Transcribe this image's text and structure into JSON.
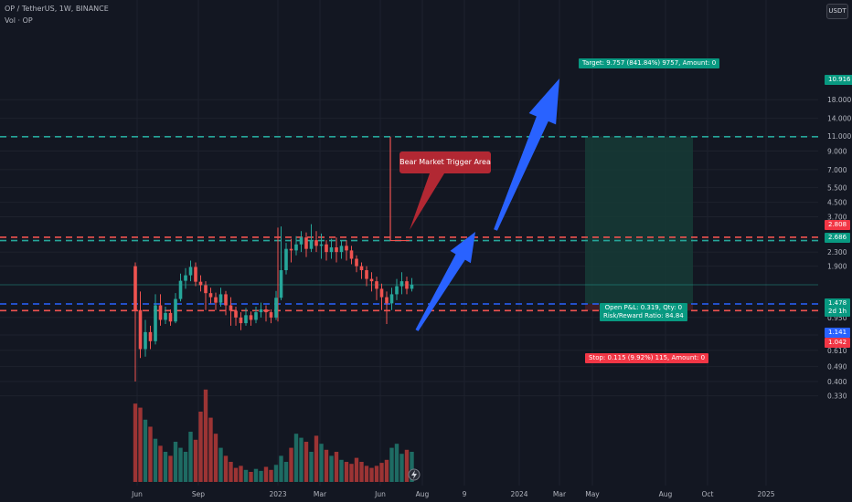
{
  "header": {
    "symbol": "OP / TetherUS, 1W, BINANCE",
    "volume_label": "Vol · OP",
    "currency_button": "USDT"
  },
  "colors": {
    "background": "#131722",
    "grid": "#1e222d",
    "up": "#26a69a",
    "down": "#ef5350",
    "vol_up": "#1e6b63",
    "vol_down": "#9c3434",
    "arrow": "#2962ff",
    "target_zone": "#163b36",
    "target_label": "#089981",
    "stop_label": "#f23645"
  },
  "annotations": {
    "callout": "Bear Market Trigger Area",
    "target": "Target: 9.757 (841.84%) 9757, Amount: 0",
    "stop": "Stop: 0.115 (9.92%) 115, Amount: 0",
    "open_pnl": "Open P&L: 0.319, Qty: 0",
    "risk_reward": "Risk/Reward Ratio: 84.84"
  },
  "price_labels": {
    "top_level": "10.916",
    "red_level": "2.808",
    "green_level": "2.686",
    "last_price": "1.478",
    "countdown": "2d 1h",
    "entry": "1.141",
    "stop_level": "1.042"
  },
  "chart_data": {
    "type": "candlestick",
    "scale": "log",
    "title": "OP / TetherUS, 1W, BINANCE",
    "ylim": [
      0.3,
      20
    ],
    "y_ticks": [
      "18.000",
      "14.000",
      "11.000",
      "9.000",
      "7.000",
      "5.500",
      "4.500",
      "3.700",
      "2.300",
      "1.900",
      "0.950",
      "0.750",
      "0.610",
      "0.490",
      "0.400",
      "0.330"
    ],
    "x_ticks": [
      "Jun",
      "Sep",
      "2023",
      "Mar",
      "Jun",
      "Aug",
      "9",
      "2024",
      "Mar",
      "May",
      "Aug",
      "Oct",
      "2025"
    ],
    "horizontal_levels": [
      {
        "value": 10.916,
        "style": "dashed",
        "color": "#26a69a"
      },
      {
        "value": 2.808,
        "style": "dashed",
        "color": "#ef5350"
      },
      {
        "value": 2.686,
        "style": "dashed",
        "color": "#26a69a"
      },
      {
        "value": 1.141,
        "style": "dashed",
        "color": "#2962ff"
      },
      {
        "value": 1.042,
        "style": "dashed",
        "color": "#ef5350"
      }
    ],
    "candles": [
      [
        1.9,
        1.05,
        2.0,
        0.4
      ],
      [
        1.05,
        0.62,
        1.35,
        0.55
      ],
      [
        0.62,
        0.78,
        0.92,
        0.56
      ],
      [
        0.78,
        0.69,
        0.85,
        0.62
      ],
      [
        0.69,
        1.12,
        1.3,
        0.66
      ],
      [
        1.12,
        0.92,
        1.3,
        0.85
      ],
      [
        0.92,
        1.01,
        1.1,
        0.87
      ],
      [
        1.01,
        0.9,
        1.06,
        0.85
      ],
      [
        0.9,
        1.22,
        1.32,
        0.88
      ],
      [
        1.22,
        1.56,
        1.72,
        1.18
      ],
      [
        1.56,
        1.68,
        1.85,
        1.4
      ],
      [
        1.68,
        1.88,
        2.05,
        1.55
      ],
      [
        1.88,
        1.54,
        2.0,
        1.45
      ],
      [
        1.54,
        1.47,
        1.68,
        1.35
      ],
      [
        1.47,
        1.32,
        1.55,
        1.05
      ],
      [
        1.32,
        1.25,
        1.42,
        1.15
      ],
      [
        1.25,
        1.16,
        1.33,
        1.05
      ],
      [
        1.16,
        1.3,
        1.42,
        1.1
      ],
      [
        1.3,
        1.12,
        1.36,
        0.98
      ],
      [
        1.12,
        1.04,
        1.25,
        0.85
      ],
      [
        1.04,
        0.95,
        1.1,
        0.85
      ],
      [
        0.95,
        0.88,
        1.02,
        0.8
      ],
      [
        0.88,
        0.98,
        1.08,
        0.85
      ],
      [
        0.98,
        0.92,
        1.03,
        0.85
      ],
      [
        0.92,
        1.02,
        1.1,
        0.88
      ],
      [
        1.02,
        1.06,
        1.16,
        0.95
      ],
      [
        1.06,
        1.02,
        1.12,
        0.9
      ],
      [
        1.02,
        0.95,
        1.06,
        0.88
      ],
      [
        0.95,
        1.24,
        1.36,
        0.92
      ],
      [
        1.24,
        1.8,
        3.25,
        1.2
      ],
      [
        1.8,
        2.4,
        2.6,
        1.7
      ],
      [
        2.4,
        2.35,
        2.75,
        2.0
      ],
      [
        2.35,
        2.55,
        2.85,
        2.2
      ],
      [
        2.55,
        2.8,
        3.05,
        2.3
      ],
      [
        2.8,
        2.4,
        3.0,
        2.15
      ],
      [
        2.4,
        2.7,
        3.35,
        2.3
      ],
      [
        2.7,
        2.5,
        3.05,
        2.3
      ],
      [
        2.5,
        2.55,
        2.95,
        2.1
      ],
      [
        2.55,
        2.3,
        2.7,
        2.05
      ],
      [
        2.3,
        2.45,
        2.75,
        2.1
      ],
      [
        2.45,
        2.3,
        2.8,
        2.0
      ],
      [
        2.3,
        2.5,
        2.7,
        2.1
      ],
      [
        2.5,
        2.35,
        2.7,
        2.05
      ],
      [
        2.35,
        2.1,
        2.5,
        1.95
      ],
      [
        2.1,
        1.9,
        2.2,
        1.75
      ],
      [
        1.9,
        1.8,
        2.0,
        1.6
      ],
      [
        1.8,
        1.6,
        1.9,
        1.45
      ],
      [
        1.6,
        1.55,
        1.75,
        1.35
      ],
      [
        1.55,
        1.4,
        1.65,
        1.2
      ],
      [
        1.4,
        1.25,
        1.5,
        1.05
      ],
      [
        1.25,
        1.15,
        1.35,
        0.87
      ],
      [
        1.15,
        1.3,
        1.42,
        1.05
      ],
      [
        1.3,
        1.45,
        1.6,
        1.2
      ],
      [
        1.45,
        1.55,
        1.75,
        1.3
      ],
      [
        1.55,
        1.4,
        1.65,
        1.3
      ],
      [
        1.4,
        1.48,
        1.62,
        1.35
      ]
    ],
    "volumes": [
      0.78,
      0.74,
      0.62,
      0.55,
      0.43,
      0.36,
      0.3,
      0.26,
      0.4,
      0.34,
      0.3,
      0.5,
      0.42,
      0.7,
      0.92,
      0.64,
      0.48,
      0.34,
      0.26,
      0.2,
      0.14,
      0.16,
      0.12,
      0.1,
      0.13,
      0.11,
      0.15,
      0.12,
      0.17,
      0.26,
      0.2,
      0.34,
      0.48,
      0.44,
      0.4,
      0.3,
      0.46,
      0.38,
      0.32,
      0.26,
      0.3,
      0.22,
      0.2,
      0.18,
      0.24,
      0.2,
      0.16,
      0.14,
      0.16,
      0.19,
      0.22,
      0.34,
      0.38,
      0.28,
      0.32,
      0.3
    ]
  }
}
